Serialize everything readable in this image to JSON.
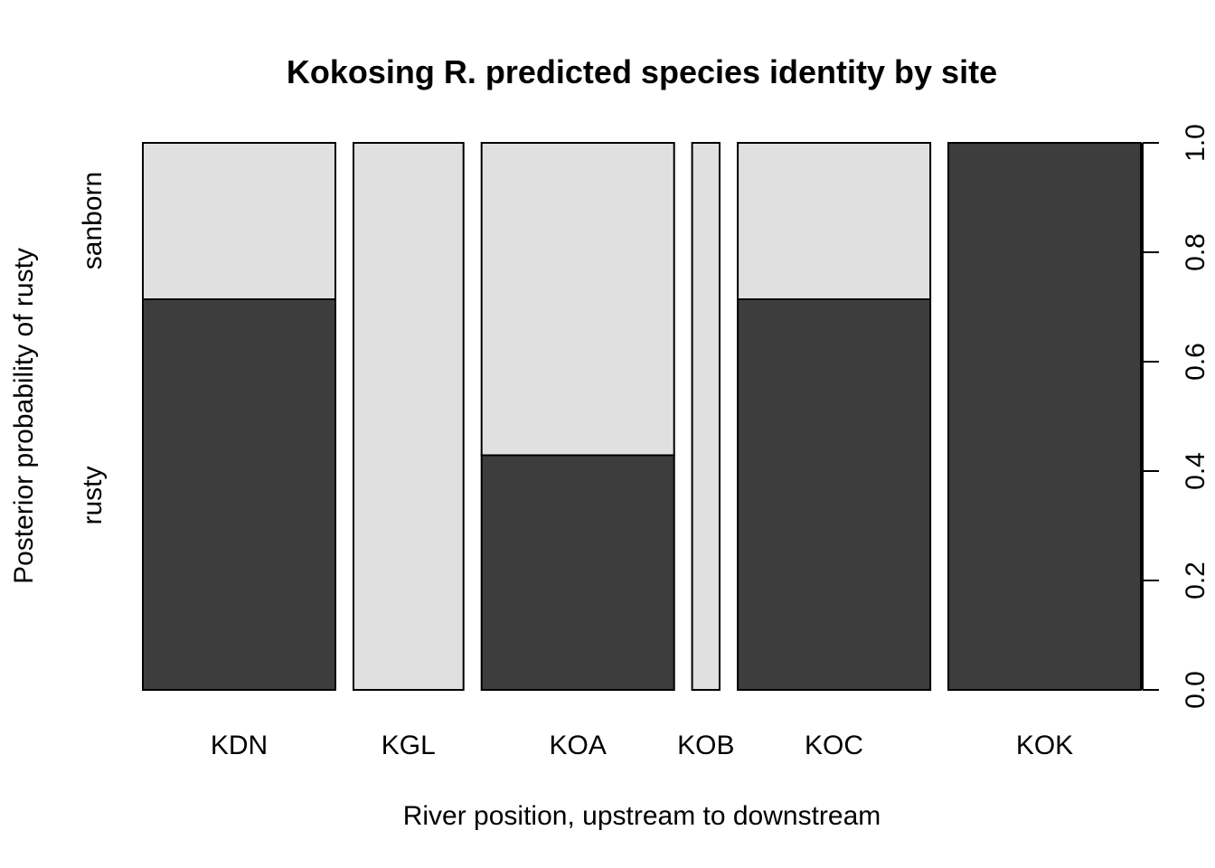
{
  "chart_data": {
    "type": "bar",
    "title": "Kokosing R. predicted species identity by site",
    "xlabel": "River position, upstream to downstream",
    "ylabel": "Posterior probability of rusty",
    "categories": [
      "KDN",
      "KGL",
      "KOA",
      "KOB",
      "KOC",
      "KOK"
    ],
    "relative_widths": [
      7,
      4,
      7,
      1,
      7,
      7
    ],
    "series": [
      {
        "name": "rusty",
        "values": [
          0.714,
          0.0,
          0.429,
          0.0,
          0.714,
          1.0
        ],
        "color": "#3d3d3d"
      },
      {
        "name": "sanborn",
        "values": [
          0.286,
          1.0,
          0.571,
          1.0,
          0.286,
          0.0
        ],
        "color": "#e0e0e0"
      }
    ],
    "ylim": [
      0,
      1
    ],
    "y_ticks": [
      "0.0",
      "0.2",
      "0.4",
      "0.6",
      "0.8",
      "1.0"
    ],
    "y_axis_side": "right",
    "grid": false
  }
}
